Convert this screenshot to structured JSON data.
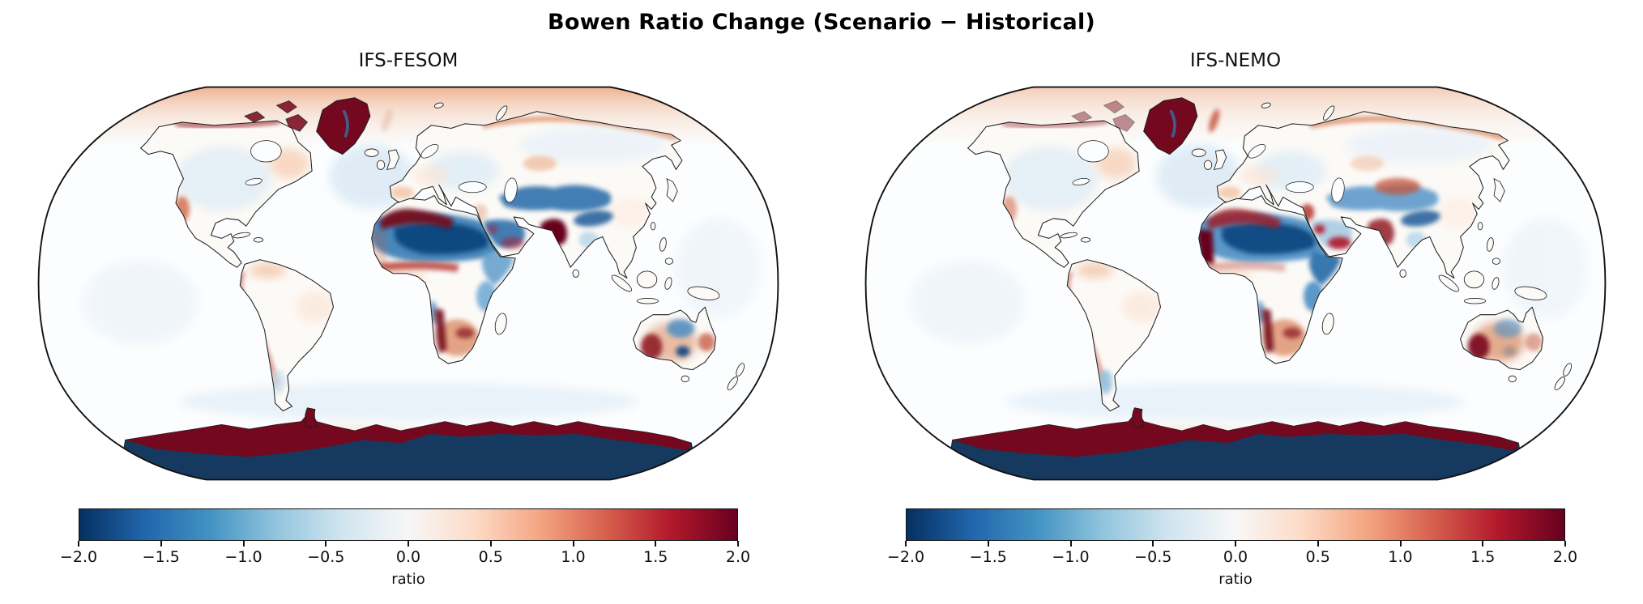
{
  "figure": {
    "title": "Bowen Ratio Change (Scenario − Historical)"
  },
  "panels": [
    {
      "title": "IFS-FESOM"
    },
    {
      "title": "IFS-NEMO"
    }
  ],
  "colorbar": {
    "label": "ratio",
    "ticks": [
      "−2.0",
      "−1.5",
      "−1.0",
      "−0.5",
      "0.0",
      "0.5",
      "1.0",
      "1.5",
      "2.0"
    ],
    "stops": [
      "#053061",
      "#2166ac",
      "#4393c3",
      "#92c5de",
      "#d1e5f0",
      "#f7f7f7",
      "#fddbc7",
      "#f4a582",
      "#d6604d",
      "#b2182b",
      "#67001f"
    ]
  },
  "chart_data": {
    "type": "heatmap",
    "title": "Bowen Ratio Change (Scenario − Historical)",
    "projection": "Robinson",
    "units": "ratio",
    "value_range": [
      -2.0,
      2.0
    ],
    "colormap": "RdBu_r",
    "colorbar_ticks": [
      -2.0,
      -1.5,
      -1.0,
      -0.5,
      0.0,
      0.5,
      1.0,
      1.5,
      2.0
    ],
    "panels": [
      {
        "model": "IFS-FESOM",
        "regions": {
          "arctic_ocean_band": {
            "label": "Arctic Ocean rim",
            "value": 0.6,
            "color": "gradient",
            "opacity": 0.85
          },
          "fram_red": {
            "label": "Fram Strait streak",
            "value": 0.3,
            "color": "#c4533b",
            "opacity": 0.2
          },
          "n_atlantic_tint": {
            "label": "North Atlantic",
            "value": -0.2,
            "color": "#d9e9f4",
            "opacity": 0.8
          },
          "pacific_tint": {
            "label": "Pacific",
            "value": -0.1,
            "color": "#eef4fa",
            "opacity": 0.8
          },
          "southern_tint": {
            "label": "Southern Ocean",
            "value": -0.2,
            "color": "#e2eef7",
            "opacity": 0.7
          },
          "so_salmon": {
            "label": "South Atlantic streak",
            "value": 0.2,
            "color": "#f6d8c5",
            "opacity": 0.6
          },
          "antarctica_interior": {
            "label": "Antarctic interior",
            "value": -2.0,
            "color": "#16395f",
            "opacity": 1
          },
          "antarctica_ring": {
            "label": "Antarctic coastal ring",
            "value": 2.0,
            "color": "#73081f",
            "opacity": 1
          },
          "antarctic_peninsula": {
            "label": "Antarctic Peninsula",
            "value": 2.0,
            "color": "#73081f",
            "opacity": 1
          },
          "greenland": {
            "label": "Greenland",
            "value": 2.0,
            "color": "#73081f",
            "opacity": 1
          },
          "greenland_vein": {
            "label": "Greenland interior vein",
            "value": -1.0,
            "color": "#3a6ea5",
            "opacity": 0.8
          },
          "canadian_arctic": {
            "label": "Canadian Arctic Archipelago",
            "value": 1.7,
            "color": "#7d1225",
            "opacity": 0.9
          },
          "na_interior_tint": {
            "label": "North America interior",
            "value": -0.2,
            "color": "#dcebf5",
            "opacity": 0.7
          },
          "quebec_wash": {
            "label": "Quebec and Labrador",
            "value": 0.3,
            "color": "#f6d0b8",
            "opacity": 0.8
          },
          "california_red": {
            "label": "California and Baja",
            "value": 0.8,
            "color": "#d0704f",
            "opacity": 0.85
          },
          "na_arctic_coast": {
            "label": "North American Arctic coast",
            "value": 1.5,
            "color": "#9e1c28",
            "opacity": 0.8
          },
          "venezuela_wash": {
            "label": "Venezuela and Colombia",
            "value": 0.4,
            "color": "#f4c9ae",
            "opacity": 0.85
          },
          "sa_wash": {
            "label": "NE Brazil",
            "value": 0.2,
            "color": "#fbe7da",
            "opacity": 0.8
          },
          "andes_line": {
            "label": "Andes",
            "value": 1.0,
            "color": "#c25038",
            "opacity": 0.85
          },
          "s_chile_blue": {
            "label": "Southern Chile",
            "value": -0.3,
            "color": "#c4dcec",
            "opacity": 0.7
          },
          "e_europe_wash": {
            "label": "Eastern Europe",
            "value": -0.3,
            "color": "#dfedf6",
            "opacity": 0.85
          },
          "siberia_wash": {
            "label": "Siberia",
            "value": -0.2,
            "color": "#e8f1f8",
            "opacity": 0.8
          },
          "wsiberia_salmon": {
            "label": "West Siberia warm spot",
            "value": 0.5,
            "color": "#f0b794",
            "opacity": 0.7
          },
          "siberia_coast": {
            "label": "Siberian Arctic coast",
            "value": 0.8,
            "color": "#dd8a62",
            "opacity": 0.8
          },
          "central_asia_blue": {
            "label": "Central Asia",
            "value": -1.3,
            "color": "#2f6fab",
            "opacity": 0.9
          },
          "central_asia_red": {
            "label": "Central Asia warm streaks",
            "value": 0.0,
            "color": "#c4533b",
            "opacity": 0
          },
          "tibet_blue": {
            "label": "Tibetan Plateau",
            "value": -1.4,
            "color": "#1d5a96",
            "opacity": 0.85
          },
          "china_wash": {
            "label": "Eastern China",
            "value": 0.2,
            "color": "#fdeee4",
            "opacity": 0.8
          },
          "iberia_wash": {
            "label": "Iberia",
            "value": 0.5,
            "color": "#f3c5a7",
            "opacity": 0.85
          },
          "europe_wash": {
            "label": "Western and Central Europe",
            "value": 0.2,
            "color": "#fae4d5",
            "opacity": 0.7
          },
          "levant_red": {
            "label": "Levant",
            "value": 0.3,
            "color": "#d8926e",
            "opacity": 0.4
          },
          "arabia_blue": {
            "label": "Arabian Peninsula",
            "value": -1.4,
            "color": "#2f6fab",
            "opacity": 0.9
          },
          "arabia_red": {
            "label": "South Arabian coast",
            "value": 0.8,
            "color": "#b2182b",
            "opacity": 0.5
          },
          "indus_blob": {
            "label": "Indus Valley / Pakistan",
            "value": 2.0,
            "color": "#67001f",
            "opacity": 1
          },
          "india_blue": {
            "label": "NE India / Bangladesh",
            "value": -0.4,
            "color": "#b8d7ea",
            "opacity": 0.85
          },
          "africa_wash": {
            "label": "West Africa (Guinea)",
            "value": 0.3,
            "color": "#f9e0d0",
            "opacity": 0.8
          },
          "sahara_outer": {
            "label": "Sahara",
            "value": -1.3,
            "color": "#3f82b8",
            "opacity": 0.95
          },
          "sahara_core": {
            "label": "Central Sahara",
            "value": -1.9,
            "color": "#0f4a80",
            "opacity": 1
          },
          "morocco_band": {
            "label": "Atlas / NW Africa coast",
            "value": 1.9,
            "color": "#73081f",
            "opacity": 0.95
          },
          "mauritania_band": {
            "label": "West Saharan Atlantic coast",
            "value": 0.4,
            "color": "#c4533b",
            "opacity": 0.25
          },
          "sahel_line": {
            "label": "Sahel fringe",
            "value": 1.2,
            "color": "#b43529",
            "opacity": 0.8
          },
          "horn_blue": {
            "label": "Horn of Africa",
            "value": -0.8,
            "color": "#5e9cca",
            "opacity": 0.85
          },
          "east_africa_blue": {
            "label": "East Africa",
            "value": -0.8,
            "color": "#6ba7d1",
            "opacity": 0.85
          },
          "namibia_red": {
            "label": "Namibian coast",
            "value": 1.9,
            "color": "#73081f",
            "opacity": 0.9
          },
          "s_africa_wash": {
            "label": "Southern Africa",
            "value": 0.8,
            "color": "#dd8f69",
            "opacity": 0.8
          },
          "s_africa_dark": {
            "label": "NE South Africa",
            "value": 1.5,
            "color": "#952a2d",
            "opacity": 0.85
          },
          "sw_africa_blue": {
            "label": "Angola coast",
            "value": -0.8,
            "color": "#4b8ec5",
            "opacity": 0.8
          },
          "australia_red": {
            "label": "Australia warm speckle",
            "value": 0.8,
            "color": "#d98a64",
            "opacity": 0.55
          },
          "aus_dark_red": {
            "label": "Western Australia",
            "value": 1.6,
            "color": "#8f1a26",
            "opacity": 0.9
          },
          "australia_blue": {
            "label": "Northern/central Australia",
            "value": -1.0,
            "color": "#4b8ec5",
            "opacity": 0.85
          },
          "aus_blue_dark": {
            "label": "Central Australia (Lake Eyre)",
            "value": -1.7,
            "color": "#144a80",
            "opacity": 0.95
          },
          "australia_red2": {
            "label": "Eastern Australia",
            "value": 1.0,
            "color": "#c4533b",
            "opacity": 0.75
          }
        }
      },
      {
        "model": "IFS-NEMO",
        "regions": {
          "arctic_ocean_band": {
            "label": "Arctic Ocean rim",
            "value": 0.5,
            "color": "gradient",
            "opacity": 0.55
          },
          "fram_red": {
            "label": "Fram Strait streak",
            "value": 1.2,
            "color": "#c4533b",
            "opacity": 0.85
          },
          "n_atlantic_tint": {
            "label": "North Atlantic",
            "value": -0.2,
            "color": "#d9e9f4",
            "opacity": 0.8
          },
          "pacific_tint": {
            "label": "Pacific",
            "value": -0.1,
            "color": "#eef4fa",
            "opacity": 0.8
          },
          "southern_tint": {
            "label": "Southern Ocean",
            "value": -0.2,
            "color": "#e2eef7",
            "opacity": 0.7
          },
          "so_salmon": {
            "label": "South Atlantic streak",
            "value": 0.2,
            "color": "#f6d8c5",
            "opacity": 0.6
          },
          "antarctica_interior": {
            "label": "Antarctic interior",
            "value": -2.0,
            "color": "#16395f",
            "opacity": 1
          },
          "antarctica_ring": {
            "label": "Antarctic coastal ring",
            "value": 2.0,
            "color": "#73081f",
            "opacity": 1
          },
          "antarctic_peninsula": {
            "label": "Antarctic Peninsula",
            "value": 2.0,
            "color": "#73081f",
            "opacity": 1
          },
          "greenland": {
            "label": "Greenland",
            "value": 2.0,
            "color": "#73081f",
            "opacity": 1
          },
          "greenland_vein": {
            "label": "Greenland interior vein",
            "value": -1.0,
            "color": "#3a6ea5",
            "opacity": 0.8
          },
          "canadian_arctic": {
            "label": "Canadian Arctic Archipelago",
            "value": 0.8,
            "color": "#8d3744",
            "opacity": 0.55
          },
          "na_interior_tint": {
            "label": "North America interior",
            "value": -0.2,
            "color": "#dcebf5",
            "opacity": 0.7
          },
          "quebec_wash": {
            "label": "Quebec and Labrador",
            "value": 0.3,
            "color": "#f6d0b8",
            "opacity": 0.8
          },
          "california_red": {
            "label": "California and Baja",
            "value": 0.5,
            "color": "#d0704f",
            "opacity": 0.6
          },
          "na_arctic_coast": {
            "label": "North American Arctic coast",
            "value": 1.2,
            "color": "#9e1c28",
            "opacity": 0.6
          },
          "venezuela_wash": {
            "label": "Venezuela and Colombia",
            "value": 0.4,
            "color": "#f4c9ae",
            "opacity": 0.85
          },
          "sa_wash": {
            "label": "NE Brazil",
            "value": 0.2,
            "color": "#fbe7da",
            "opacity": 0.8
          },
          "andes_line": {
            "label": "Andes",
            "value": 1.0,
            "color": "#c25038",
            "opacity": 0.85
          },
          "s_chile_blue": {
            "label": "Southern Chile",
            "value": -0.6,
            "color": "#8fc1de",
            "opacity": 0.85
          },
          "e_europe_wash": {
            "label": "Eastern Europe",
            "value": -0.3,
            "color": "#dfedf6",
            "opacity": 0.85
          },
          "siberia_wash": {
            "label": "Siberia",
            "value": -0.2,
            "color": "#e8f1f8",
            "opacity": 0.8
          },
          "wsiberia_salmon": {
            "label": "West Siberia warm spot",
            "value": 0.3,
            "color": "#f0b794",
            "opacity": 0.5
          },
          "siberia_coast": {
            "label": "Siberian Arctic coast",
            "value": 0.9,
            "color": "#dd8a62",
            "opacity": 0.9
          },
          "central_asia_blue": {
            "label": "Central Asia",
            "value": -1.0,
            "color": "#4b8ec5",
            "opacity": 0.8
          },
          "central_asia_red": {
            "label": "Central Asia warm streaks",
            "value": 1.0,
            "color": "#c4533b",
            "opacity": 0.75
          },
          "tibet_blue": {
            "label": "Tibetan Plateau",
            "value": -1.4,
            "color": "#1d5a96",
            "opacity": 0.85
          },
          "china_wash": {
            "label": "Eastern China",
            "value": 0.2,
            "color": "#fdeee4",
            "opacity": 0.8
          },
          "iberia_wash": {
            "label": "Iberia",
            "value": 0.5,
            "color": "#f3c5a7",
            "opacity": 0.85
          },
          "europe_wash": {
            "label": "Western and Central Europe",
            "value": 0.2,
            "color": "#fae4d5",
            "opacity": 0.7
          },
          "levant_red": {
            "label": "Levant",
            "value": 1.2,
            "color": "#b43529",
            "opacity": 0.85
          },
          "arabia_blue": {
            "label": "Arabian Peninsula",
            "value": -0.5,
            "color": "#7fb3d8",
            "opacity": 0.6
          },
          "arabia_red": {
            "label": "Arabian warm patches",
            "value": 1.5,
            "color": "#b2182b",
            "opacity": 0.9
          },
          "indus_blob": {
            "label": "Indus Valley / Pakistan",
            "value": 1.5,
            "color": "#8f1a26",
            "opacity": 0.85
          },
          "india_blue": {
            "label": "NE India / Bangladesh",
            "value": -0.4,
            "color": "#b8d7ea",
            "opacity": 0.85
          },
          "africa_wash": {
            "label": "West Africa (Guinea)",
            "value": 0.3,
            "color": "#f9e0d0",
            "opacity": 0.8
          },
          "sahara_outer": {
            "label": "Sahara",
            "value": -1.1,
            "color": "#4b8ec5",
            "opacity": 0.9
          },
          "sahara_core": {
            "label": "Central Sahara",
            "value": -1.9,
            "color": "#0f4a80",
            "opacity": 0.95
          },
          "morocco_band": {
            "label": "Atlas / NW Africa coast",
            "value": 1.5,
            "color": "#9e1c28",
            "opacity": 0.85
          },
          "mauritania_band": {
            "label": "West Saharan Atlantic coast",
            "value": 2.0,
            "color": "#67001f",
            "opacity": 1
          },
          "sahel_line": {
            "label": "Sahel fringe",
            "value": 0.4,
            "color": "#b43529",
            "opacity": 0.35
          },
          "horn_blue": {
            "label": "Horn of Africa",
            "value": -1.3,
            "color": "#2f6fab",
            "opacity": 0.95
          },
          "east_africa_blue": {
            "label": "East Africa",
            "value": -1.0,
            "color": "#4b8ec5",
            "opacity": 0.9
          },
          "namibia_red": {
            "label": "Namibian coast",
            "value": 1.9,
            "color": "#73081f",
            "opacity": 0.9
          },
          "s_africa_wash": {
            "label": "Southern Africa",
            "value": 0.8,
            "color": "#dd8f69",
            "opacity": 0.8
          },
          "s_africa_dark": {
            "label": "NE South Africa",
            "value": 1.5,
            "color": "#952a2d",
            "opacity": 0.85
          },
          "sw_africa_blue": {
            "label": "Angola coast",
            "value": -0.8,
            "color": "#4b8ec5",
            "opacity": 0.8
          },
          "australia_red": {
            "label": "Australia warm speckle",
            "value": 1.0,
            "color": "#d98a64",
            "opacity": 0.7
          },
          "aus_dark_red": {
            "label": "Western Australia",
            "value": 1.9,
            "color": "#7d0d22",
            "opacity": 0.95
          },
          "australia_blue": {
            "label": "Northern/central Australia",
            "value": -0.6,
            "color": "#4b8ec5",
            "opacity": 0.6
          },
          "aus_blue_dark": {
            "label": "Central Australia (Lake Eyre)",
            "value": -0.5,
            "color": "#144a80",
            "opacity": 0.25
          },
          "australia_red2": {
            "label": "Eastern Australia",
            "value": 0.5,
            "color": "#c4533b",
            "opacity": 0.5
          }
        }
      }
    ]
  }
}
